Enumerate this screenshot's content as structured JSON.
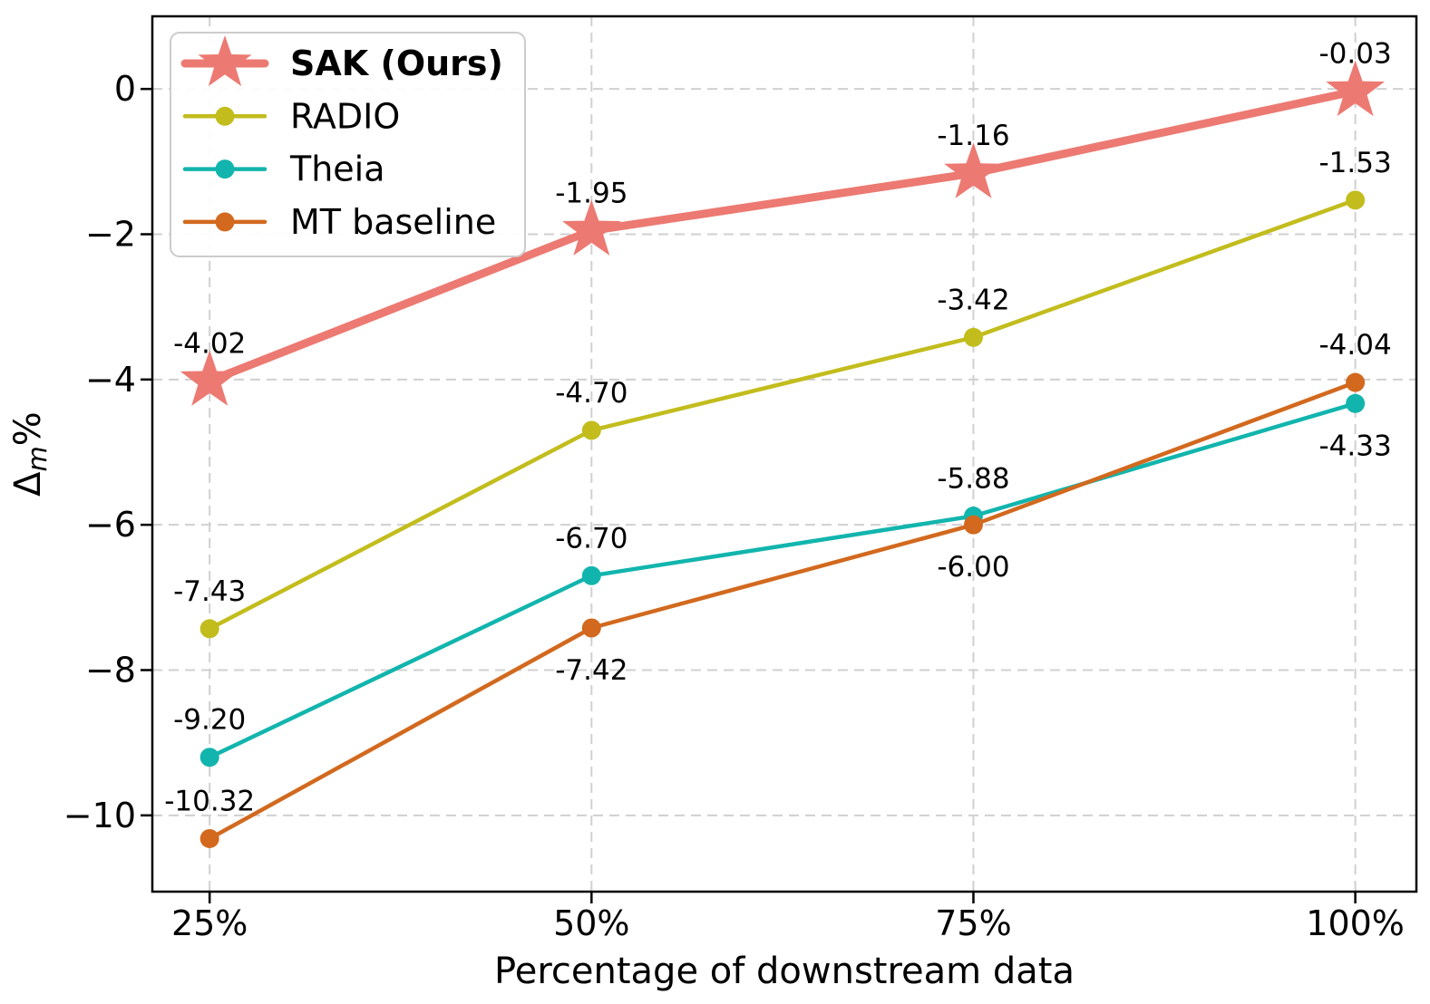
{
  "chart_data": {
    "type": "line",
    "title": "",
    "xlabel": "Percentage of downstream data",
    "ylabel": "Δm%",
    "ylabel_parts": {
      "prefix": "Δ",
      "sub": "m",
      "suffix": "%"
    },
    "categories": [
      "25%",
      "50%",
      "75%",
      "100%"
    ],
    "ytick_values": [
      0,
      -2,
      -4,
      -6,
      -8,
      -10
    ],
    "ytick_labels": [
      "0",
      "−2",
      "−4",
      "−6",
      "−8",
      "−10"
    ],
    "xlim": [
      -0.15,
      3.16
    ],
    "ylim": [
      -11.05,
      1.0
    ],
    "grid": true,
    "legend_position": "upper left",
    "series": [
      {
        "name": "SAK (Ours)",
        "bold": true,
        "color": "#ec7a72",
        "marker": "star",
        "linewidth": 9,
        "values": [
          -4.02,
          -1.95,
          -1.16,
          -0.03
        ],
        "labels": [
          "-4.02",
          "-1.95",
          "-1.16",
          "-0.03"
        ],
        "label_positions": [
          "above",
          "above",
          "above",
          "above"
        ]
      },
      {
        "name": "RADIO",
        "bold": false,
        "color": "#c2bd1d",
        "marker": "circle",
        "linewidth": 4.5,
        "values": [
          -7.43,
          -4.7,
          -3.42,
          -1.53
        ],
        "labels": [
          "-7.43",
          "-4.70",
          "-3.42",
          "-1.53"
        ],
        "label_positions": [
          "above",
          "above",
          "above",
          "above"
        ]
      },
      {
        "name": "Theia",
        "bold": false,
        "color": "#12b5ad",
        "marker": "circle",
        "linewidth": 4.5,
        "values": [
          -9.2,
          -6.7,
          -5.88,
          -4.33
        ],
        "labels": [
          "-9.20",
          "-6.70",
          "-5.88",
          "-4.33"
        ],
        "label_positions": [
          "above",
          "above",
          "above",
          "below"
        ]
      },
      {
        "name": "MT baseline",
        "bold": false,
        "color": "#d2691e",
        "marker": "circle",
        "linewidth": 4.5,
        "values": [
          -10.32,
          -7.42,
          -6.0,
          -4.04
        ],
        "labels": [
          "-10.32",
          "-7.42",
          "-6.00",
          "-4.04"
        ],
        "label_positions": [
          "above",
          "below",
          "below",
          "above"
        ]
      }
    ]
  }
}
